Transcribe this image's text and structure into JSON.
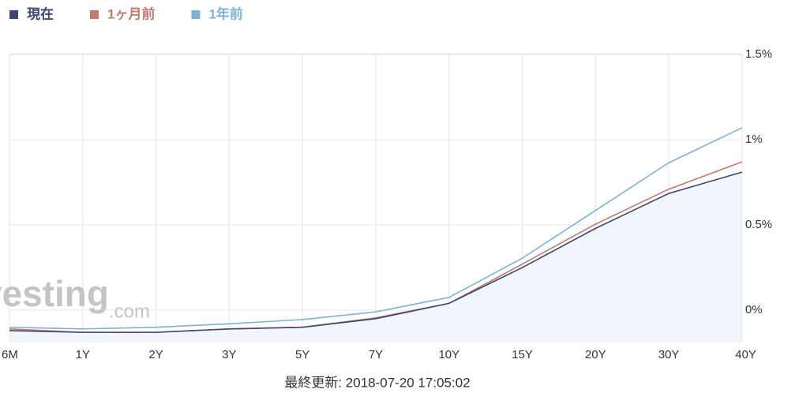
{
  "chart_data": {
    "type": "line",
    "categories": [
      "6M",
      "1Y",
      "2Y",
      "3Y",
      "5Y",
      "7Y",
      "10Y",
      "15Y",
      "20Y",
      "30Y",
      "40Y"
    ],
    "series": [
      {
        "name": "現在",
        "color": "#3d4673",
        "values": [
          -0.12,
          -0.13,
          -0.13,
          -0.11,
          -0.1,
          -0.05,
          0.04,
          0.25,
          0.48,
          0.685,
          0.81
        ],
        "area": true
      },
      {
        "name": "1ヶ月前",
        "color": "#c07a70",
        "values": [
          -0.11,
          -0.13,
          -0.13,
          -0.11,
          -0.1,
          -0.045,
          0.04,
          0.27,
          0.505,
          0.71,
          0.87
        ]
      },
      {
        "name": "1年前",
        "color": "#7fb2d2",
        "values": [
          -0.1,
          -0.11,
          -0.1,
          -0.08,
          -0.055,
          -0.01,
          0.075,
          0.305,
          0.585,
          0.865,
          1.07
        ]
      }
    ],
    "ylim": [
      -0.185,
      1.505
    ],
    "yticks": [
      {
        "value": 0,
        "label": "0%"
      },
      {
        "value": 0.5,
        "label": "0.5%"
      },
      {
        "value": 1,
        "label": "1%"
      },
      {
        "value": 1.5,
        "label": "1.5%"
      }
    ],
    "grid": true,
    "watermark": "investing",
    "watermark_suffix": ".com",
    "footer": "最終更新: 2018-07-20 17:05:02"
  }
}
